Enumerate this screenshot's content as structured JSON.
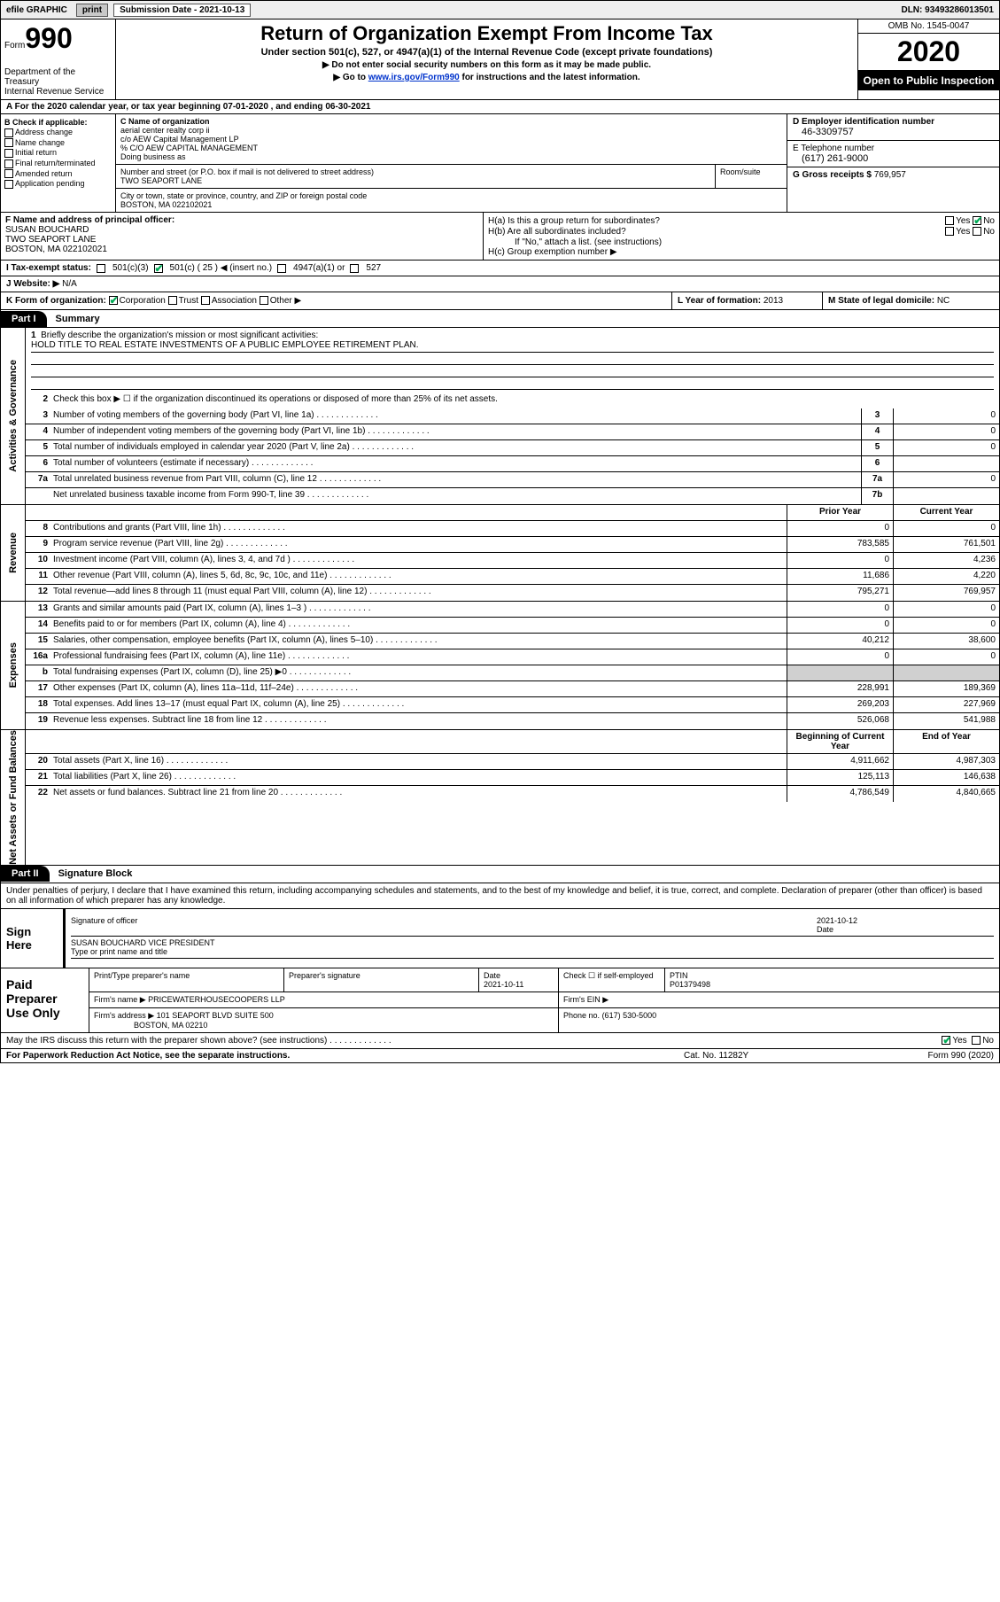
{
  "topbar": {
    "efile": "efile GRAPHIC",
    "print": "print",
    "sub_date_label": "Submission Date - 2021-10-13",
    "dln": "DLN: 93493286013501"
  },
  "header": {
    "form_label": "Form",
    "form_number": "990",
    "dept": "Department of the Treasury\nInternal Revenue Service",
    "title": "Return of Organization Exempt From Income Tax",
    "subtitle": "Under section 501(c), 527, or 4947(a)(1) of the Internal Revenue Code (except private foundations)",
    "instr1": "Do not enter social security numbers on this form as it may be made public.",
    "instr2_prefix": "Go to ",
    "instr2_link": "www.irs.gov/Form990",
    "instr2_suffix": " for instructions and the latest information.",
    "omb": "OMB No. 1545-0047",
    "year": "2020",
    "open": "Open to Public Inspection"
  },
  "line_a": "A For the 2020 calendar year, or tax year beginning 07-01-2020   , and ending 06-30-2021",
  "col_b": {
    "title": "B Check if applicable:",
    "opts": [
      "Address change",
      "Name change",
      "Initial return",
      "Final return/terminated",
      "Amended return",
      "Application pending"
    ]
  },
  "col_c": {
    "name_label": "C Name of organization",
    "name1": "aerial center realty corp ii",
    "name2": "c/o AEW Capital Management LP",
    "name3": "% C/O AEW CAPITAL MANAGEMENT",
    "dba_label": "Doing business as",
    "street_label": "Number and street (or P.O. box if mail is not delivered to street address)",
    "street": "TWO SEAPORT LANE",
    "room_label": "Room/suite",
    "city_label": "City or town, state or province, country, and ZIP or foreign postal code",
    "city": "BOSTON, MA  022102021"
  },
  "col_d": {
    "d_label": "D Employer identification number",
    "d_val": "46-3309757",
    "e_label": "E Telephone number",
    "e_val": "(617) 261-9000",
    "g_label": "G Gross receipts $",
    "g_val": "769,957"
  },
  "sec_f": {
    "f_label": "F Name and address of principal officer:",
    "f_name": "SUSAN BOUCHARD",
    "f_addr1": "TWO SEAPORT LANE",
    "f_addr2": "BOSTON, MA  022102021",
    "ha": "H(a)  Is this a group return for subordinates?",
    "hb": "H(b)  Are all subordinates included?",
    "hb_note": "If \"No,\" attach a list. (see instructions)",
    "hc": "H(c)  Group exemption number ▶",
    "yes": "Yes",
    "no": "No"
  },
  "sec_i": {
    "label": "I   Tax-exempt status:",
    "o1": "501(c)(3)",
    "o2": "501(c) ( 25 ) ◀ (insert no.)",
    "o3": "4947(a)(1) or",
    "o4": "527"
  },
  "sec_j": {
    "label": "J   Website: ▶",
    "val": "N/A"
  },
  "sec_k": {
    "k_label": "K Form of organization:",
    "corp": "Corporation",
    "trust": "Trust",
    "assoc": "Association",
    "other": "Other ▶",
    "l_label": "L Year of formation:",
    "l_val": "2013",
    "m_label": "M State of legal domicile:",
    "m_val": "NC"
  },
  "part1": {
    "tab": "Part I",
    "title": "Summary",
    "side_gov": "Activities & Governance",
    "side_rev": "Revenue",
    "side_exp": "Expenses",
    "side_net": "Net Assets or Fund Balances",
    "q1": "Briefly describe the organization's mission or most significant activities:",
    "q1_val": "HOLD TITLE TO REAL ESTATE INVESTMENTS OF A PUBLIC EMPLOYEE RETIREMENT PLAN.",
    "q2": "Check this box ▶ ☐  if the organization discontinued its operations or disposed of more than 25% of its net assets.",
    "rows_gov": [
      {
        "n": "3",
        "t": "Number of voting members of the governing body (Part VI, line 1a)",
        "bn": "3",
        "v": "0"
      },
      {
        "n": "4",
        "t": "Number of independent voting members of the governing body (Part VI, line 1b)",
        "bn": "4",
        "v": "0"
      },
      {
        "n": "5",
        "t": "Total number of individuals employed in calendar year 2020 (Part V, line 2a)",
        "bn": "5",
        "v": "0"
      },
      {
        "n": "6",
        "t": "Total number of volunteers (estimate if necessary)",
        "bn": "6",
        "v": ""
      },
      {
        "n": "7a",
        "t": "Total unrelated business revenue from Part VIII, column (C), line 12",
        "bn": "7a",
        "v": "0"
      },
      {
        "n": "",
        "t": "Net unrelated business taxable income from Form 990-T, line 39",
        "bn": "7b",
        "v": ""
      }
    ],
    "hdr_prior": "Prior Year",
    "hdr_curr": "Current Year",
    "rows_rev": [
      {
        "n": "8",
        "t": "Contributions and grants (Part VIII, line 1h)",
        "p": "0",
        "c": "0"
      },
      {
        "n": "9",
        "t": "Program service revenue (Part VIII, line 2g)",
        "p": "783,585",
        "c": "761,501"
      },
      {
        "n": "10",
        "t": "Investment income (Part VIII, column (A), lines 3, 4, and 7d )",
        "p": "0",
        "c": "4,236"
      },
      {
        "n": "11",
        "t": "Other revenue (Part VIII, column (A), lines 5, 6d, 8c, 9c, 10c, and 11e)",
        "p": "11,686",
        "c": "4,220"
      },
      {
        "n": "12",
        "t": "Total revenue—add lines 8 through 11 (must equal Part VIII, column (A), line 12)",
        "p": "795,271",
        "c": "769,957"
      }
    ],
    "rows_exp": [
      {
        "n": "13",
        "t": "Grants and similar amounts paid (Part IX, column (A), lines 1–3 )",
        "p": "0",
        "c": "0"
      },
      {
        "n": "14",
        "t": "Benefits paid to or for members (Part IX, column (A), line 4)",
        "p": "0",
        "c": "0"
      },
      {
        "n": "15",
        "t": "Salaries, other compensation, employee benefits (Part IX, column (A), lines 5–10)",
        "p": "40,212",
        "c": "38,600"
      },
      {
        "n": "16a",
        "t": "Professional fundraising fees (Part IX, column (A), line 11e)",
        "p": "0",
        "c": "0"
      },
      {
        "n": "b",
        "t": "Total fundraising expenses (Part IX, column (D), line 25) ▶0",
        "p": "",
        "c": "",
        "grey": true
      },
      {
        "n": "17",
        "t": "Other expenses (Part IX, column (A), lines 11a–11d, 11f–24e)",
        "p": "228,991",
        "c": "189,369"
      },
      {
        "n": "18",
        "t": "Total expenses. Add lines 13–17 (must equal Part IX, column (A), line 25)",
        "p": "269,203",
        "c": "227,969"
      },
      {
        "n": "19",
        "t": "Revenue less expenses. Subtract line 18 from line 12",
        "p": "526,068",
        "c": "541,988"
      }
    ],
    "hdr_beg": "Beginning of Current Year",
    "hdr_end": "End of Year",
    "rows_net": [
      {
        "n": "20",
        "t": "Total assets (Part X, line 16)",
        "p": "4,911,662",
        "c": "4,987,303"
      },
      {
        "n": "21",
        "t": "Total liabilities (Part X, line 26)",
        "p": "125,113",
        "c": "146,638"
      },
      {
        "n": "22",
        "t": "Net assets or fund balances. Subtract line 21 from line 20",
        "p": "4,786,549",
        "c": "4,840,665"
      }
    ]
  },
  "part2": {
    "tab": "Part II",
    "title": "Signature Block",
    "perjury": "Under penalties of perjury, I declare that I have examined this return, including accompanying schedules and statements, and to the best of my knowledge and belief, it is true, correct, and complete. Declaration of preparer (other than officer) is based on all information of which preparer has any knowledge.",
    "sign_here": "Sign Here",
    "sig_officer": "Signature of officer",
    "date": "Date",
    "date_val": "2021-10-12",
    "name_title": "SUSAN BOUCHARD  VICE PRESIDENT",
    "name_lbl": "Type or print name and title",
    "paid": "Paid Preparer Use Only",
    "prep_name_lbl": "Print/Type preparer's name",
    "prep_sig_lbl": "Preparer's signature",
    "prep_date_lbl": "Date",
    "prep_date_val": "2021-10-11",
    "check_lbl": "Check ☐ if self-employed",
    "ptin_lbl": "PTIN",
    "ptin_val": "P01379498",
    "firm_name_lbl": "Firm's name    ▶",
    "firm_name": "PRICEWATERHOUSECOOPERS LLP",
    "firm_ein_lbl": "Firm's EIN ▶",
    "firm_addr_lbl": "Firm's address ▶",
    "firm_addr1": "101 SEAPORT BLVD SUITE 500",
    "firm_addr2": "BOSTON, MA  02210",
    "phone_lbl": "Phone no.",
    "phone_val": "(617) 530-5000",
    "discuss": "May the IRS discuss this return with the preparer shown above? (see instructions)",
    "yes": "Yes",
    "no": "No"
  },
  "footer": {
    "l": "For Paperwork Reduction Act Notice, see the separate instructions.",
    "m": "Cat. No. 11282Y",
    "r": "Form 990 (2020)"
  }
}
